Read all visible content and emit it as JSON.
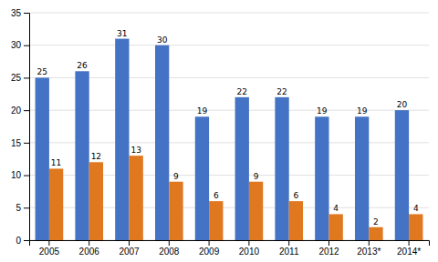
{
  "chart_data": {
    "type": "bar",
    "categories": [
      "2005",
      "2006",
      "2007",
      "2008",
      "2009",
      "2010",
      "2011",
      "2012",
      "2013*",
      "2014*"
    ],
    "series": [
      {
        "color": "#4472C4",
        "values": [
          25,
          26,
          31,
          30,
          19,
          22,
          22,
          19,
          19,
          20
        ]
      },
      {
        "color": "#E07820",
        "values": [
          11,
          12,
          13,
          9,
          6,
          9,
          6,
          4,
          2,
          4
        ]
      }
    ],
    "ylim": [
      0,
      35
    ],
    "yticks": [
      0,
      5,
      10,
      15,
      20,
      25,
      30,
      35
    ],
    "grid": true,
    "data_labels": true
  }
}
